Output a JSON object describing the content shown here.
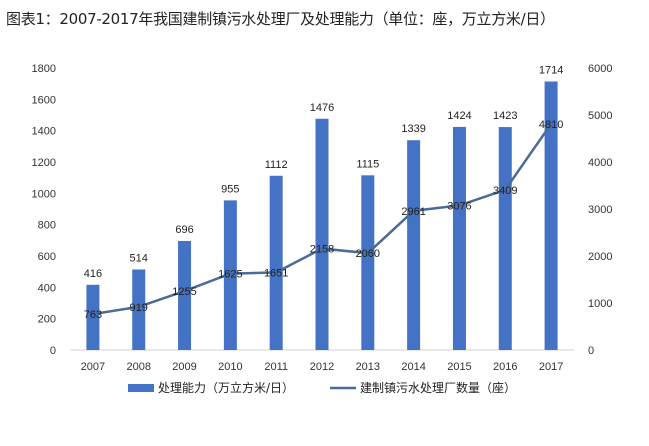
{
  "chart_data": {
    "type": "bar+line",
    "title": "图表1：2007-2017年我国建制镇污水处理厂及处理能力（单位：座，万立方米/日）",
    "categories": [
      "2007",
      "2008",
      "2009",
      "2010",
      "2011",
      "2012",
      "2013",
      "2014",
      "2015",
      "2016",
      "2017"
    ],
    "series": [
      {
        "name": "处理能力（万立方米/日）",
        "type": "bar",
        "axis": "left",
        "color": "#4472c4",
        "values": [
          416,
          514,
          696,
          955,
          1112,
          1476,
          1115,
          1339,
          1424,
          1423,
          1714
        ]
      },
      {
        "name": "建制镇污水处理厂数量（座）",
        "type": "line",
        "axis": "right",
        "color": "#4a6a9a",
        "values": [
          763,
          919,
          1255,
          1625,
          1651,
          2158,
          2060,
          2961,
          3076,
          3409,
          4810
        ]
      }
    ],
    "left_axis": {
      "ylim": [
        0,
        1800
      ],
      "ticks": [
        "0",
        "200",
        "400",
        "600",
        "800",
        "1000",
        "1200",
        "1400",
        "1600",
        "1800"
      ]
    },
    "right_axis": {
      "ylim": [
        0,
        6000
      ],
      "ticks": [
        "0",
        "1000",
        "2000",
        "3000",
        "4000",
        "5000",
        "6000"
      ]
    },
    "grid": false,
    "legend": "bottom"
  }
}
